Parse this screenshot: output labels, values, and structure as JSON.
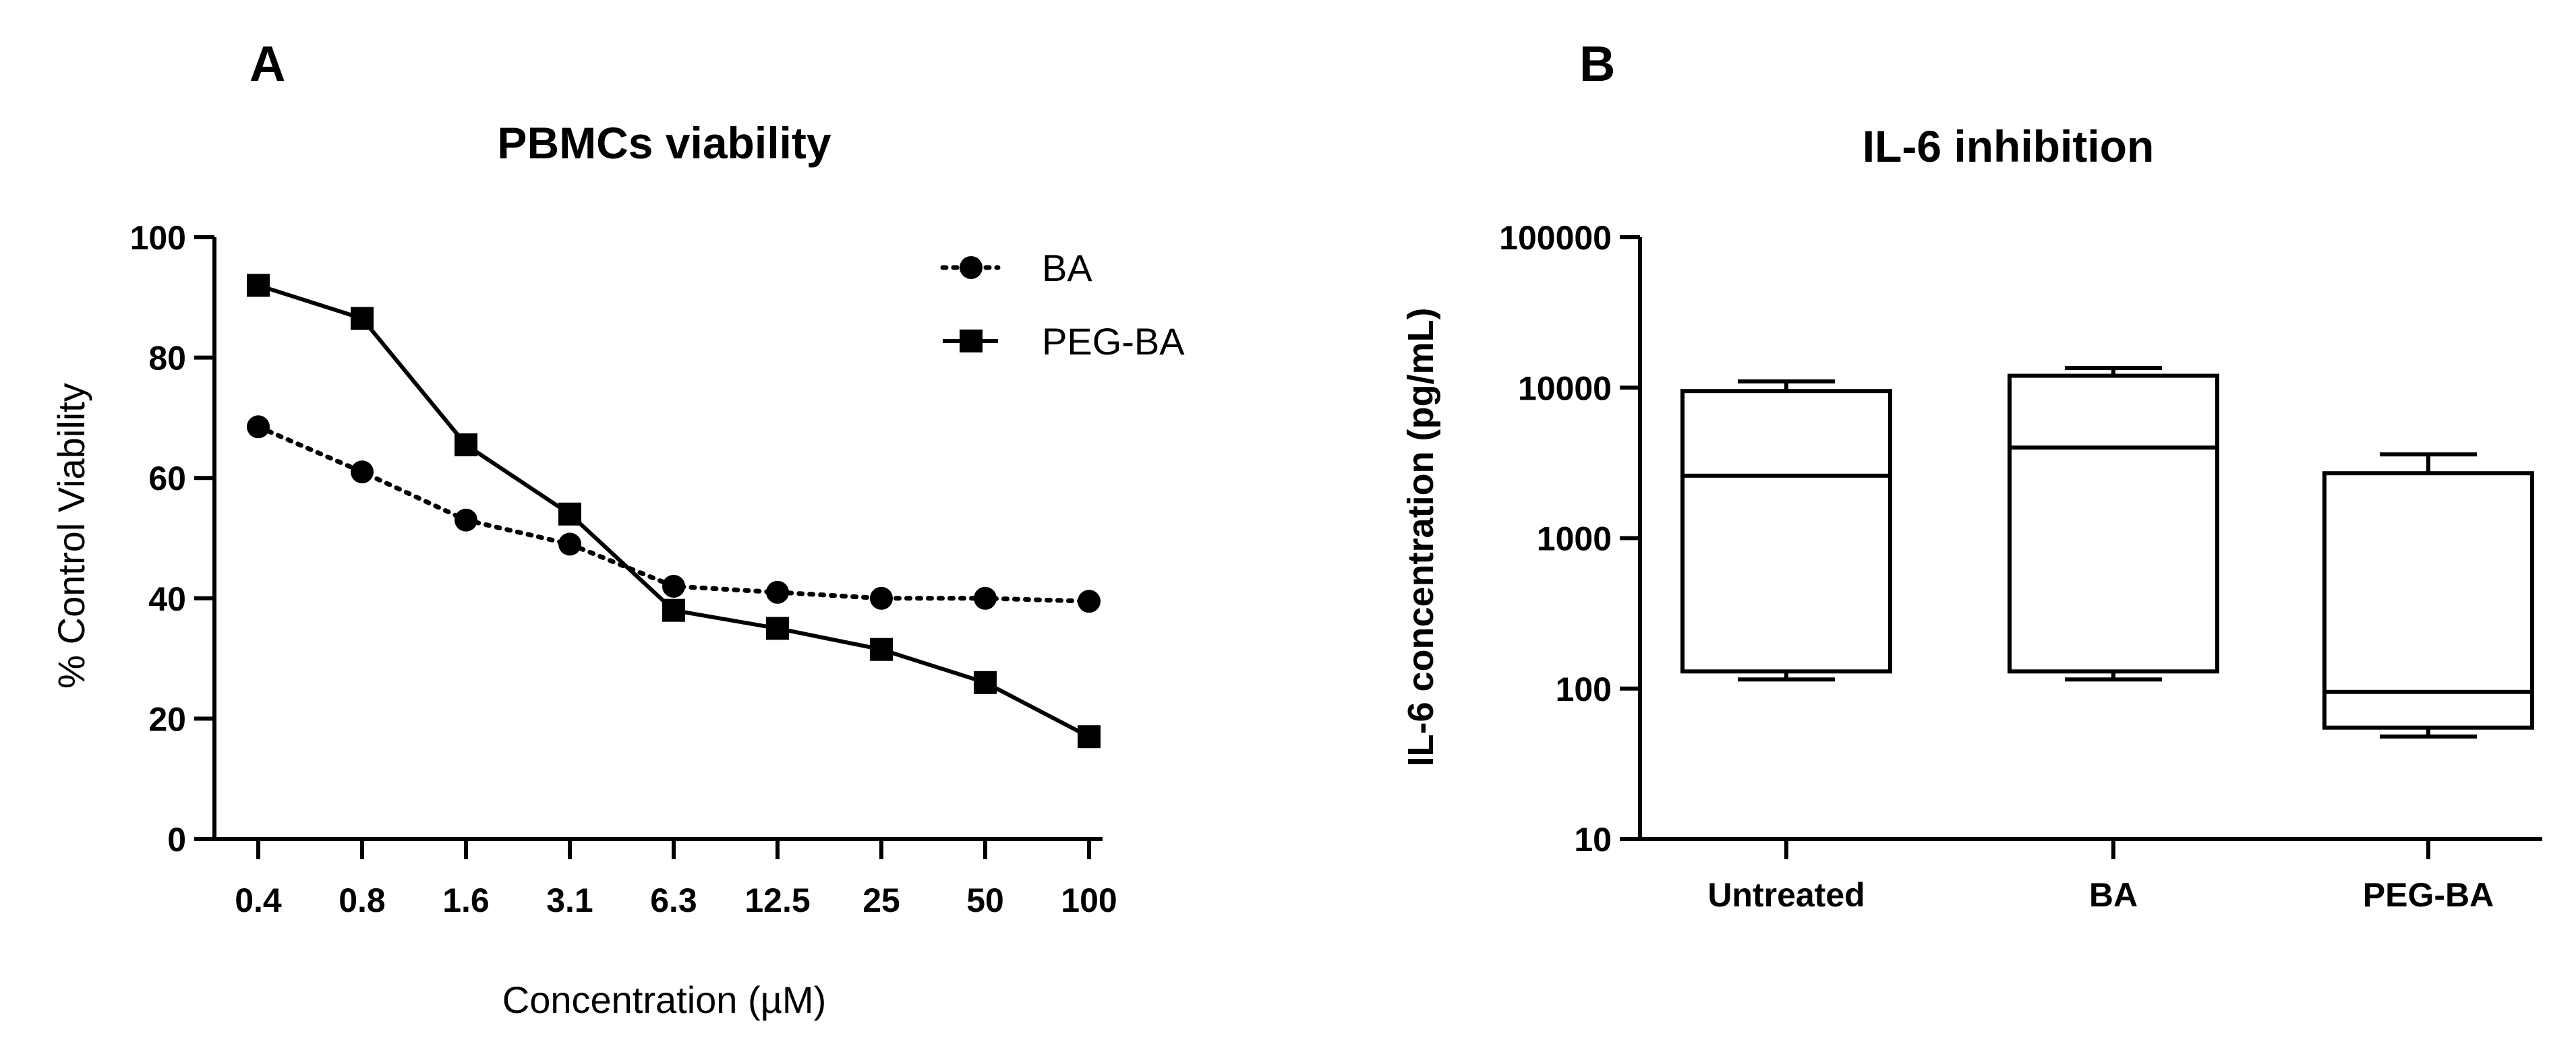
{
  "chart_data": [
    {
      "panel": "A",
      "type": "line",
      "title": "PBMCs viability",
      "xlabel_prefix": "Concentration (",
      "xlabel_unit": "µM",
      "xlabel_suffix": ")",
      "ylabel": "% Control Viability",
      "categories": [
        "0.4",
        "0.8",
        "1.6",
        "3.1",
        "6.3",
        "12.5",
        "25",
        "50",
        "100"
      ],
      "ylim": [
        0,
        100
      ],
      "yticks": [
        "0",
        "20",
        "40",
        "60",
        "80",
        "100"
      ],
      "legend_position": "top-right",
      "series": [
        {
          "name": "BA",
          "marker": "circle",
          "line": "dotted",
          "values": [
            68.5,
            61,
            53,
            49,
            42,
            41,
            40,
            40,
            39.5
          ]
        },
        {
          "name": "PEG-BA",
          "marker": "square",
          "line": "solid",
          "values": [
            92,
            86.5,
            65.5,
            54,
            38,
            35,
            31.5,
            26,
            17
          ]
        }
      ]
    },
    {
      "panel": "B",
      "type": "box",
      "title": "IL-6 inhibition",
      "xlabel": "",
      "ylabel": "IL-6 concentration (pg/mL)",
      "yscale": "log",
      "ylim": [
        10,
        100000
      ],
      "yticks": [
        "10",
        "100",
        "1000",
        "10000",
        "100000"
      ],
      "categories": [
        "Untreated",
        "BA",
        "PEG-BA"
      ],
      "boxes": [
        {
          "name": "Untreated",
          "min": 115,
          "q1": 130,
          "median": 2600,
          "q3": 9500,
          "max": 11000
        },
        {
          "name": "BA",
          "min": 115,
          "q1": 130,
          "median": 4000,
          "q3": 12000,
          "max": 13500
        },
        {
          "name": "PEG-BA",
          "min": 48,
          "q1": 55,
          "median": 95,
          "q3": 2700,
          "max": 3600
        }
      ]
    }
  ]
}
